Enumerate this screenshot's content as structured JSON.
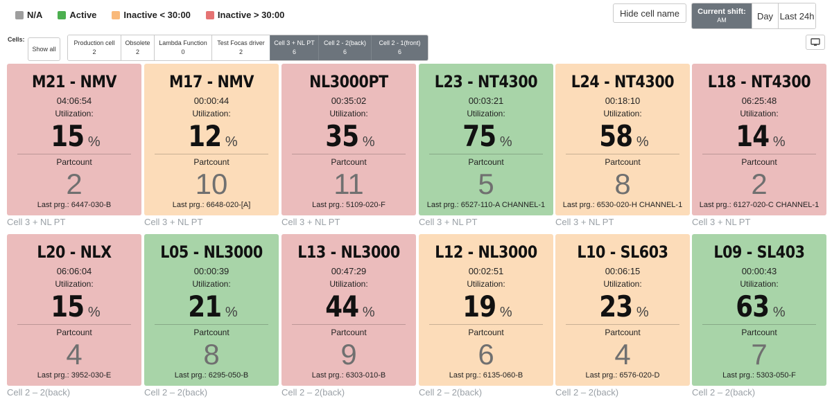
{
  "legend": [
    {
      "label": "N/A",
      "color": "#9e9e9e"
    },
    {
      "label": "Active",
      "color": "#4caf50"
    },
    {
      "label": "Inactive < 30:00",
      "color": "#f9b97a"
    },
    {
      "label": "Inactive > 30:00",
      "color": "#e57373"
    }
  ],
  "controls": {
    "hide_cell_name": "Hide cell name",
    "current_shift_label": "Current shift:",
    "current_shift_value": "AM",
    "day": "Day",
    "last_24h": "Last 24h"
  },
  "cells": {
    "label": "Cells:",
    "show_all": "Show all",
    "items": [
      {
        "name": "Production cell",
        "count": "2",
        "active": false
      },
      {
        "name": "Obsolete",
        "count": "2",
        "active": false
      },
      {
        "name": "Lambda Function",
        "count": "0",
        "active": false
      },
      {
        "name": "Test Focas driver",
        "count": "2",
        "active": false
      },
      {
        "name": "Cell 3 + NL PT",
        "count": "6",
        "active": true
      },
      {
        "name": "Cell 2 - 2(back)",
        "count": "6",
        "active": true
      },
      {
        "name": "Cell 2 - 1(front)",
        "count": "6",
        "active": true
      }
    ]
  },
  "machines": [
    {
      "name": "M21 - NMV",
      "time": "04:06:54",
      "util_label": "Utilization:",
      "util": "15",
      "part_label": "Partcount",
      "partcount": "2",
      "last_prg": "Last prg.: 6447-030-B",
      "cell": "Cell 3 + NL PT",
      "status": "red"
    },
    {
      "name": "M17 - NMV",
      "time": "00:00:44",
      "util_label": "Utilization:",
      "util": "12",
      "part_label": "Partcount",
      "partcount": "10",
      "last_prg": "Last prg.: 6648-020-[A]",
      "cell": "Cell 3 + NL PT",
      "status": "orange"
    },
    {
      "name": "NL3000PT",
      "time": "00:35:02",
      "util_label": "Utilization:",
      "util": "35",
      "part_label": "Partcount",
      "partcount": "11",
      "last_prg": "Last prg.: 5109-020-F",
      "cell": "Cell 3 + NL PT",
      "status": "red"
    },
    {
      "name": "L23 - NT4300",
      "time": "00:03:21",
      "util_label": "Utilization:",
      "util": "75",
      "part_label": "Partcount",
      "partcount": "5",
      "last_prg": "Last prg.: 6527-110-A CHANNEL-1",
      "cell": "Cell 3 + NL PT",
      "status": "green"
    },
    {
      "name": "L24 - NT4300",
      "time": "00:18:10",
      "util_label": "Utilization:",
      "util": "58",
      "part_label": "Partcount",
      "partcount": "8",
      "last_prg": "Last prg.: 6530-020-H CHANNEL-1",
      "cell": "Cell 3 + NL PT",
      "status": "orange"
    },
    {
      "name": "L18 - NT4300",
      "time": "06:25:48",
      "util_label": "Utilization:",
      "util": "14",
      "part_label": "Partcount",
      "partcount": "2",
      "last_prg": "Last prg.: 6127-020-C CHANNEL-1",
      "cell": "Cell 3 + NL PT",
      "status": "red"
    },
    {
      "name": "L20 - NLX",
      "time": "06:06:04",
      "util_label": "Utilization:",
      "util": "15",
      "part_label": "Partcount",
      "partcount": "4",
      "last_prg": "Last prg.: 3952-030-E",
      "cell": "Cell 2 – 2(back)",
      "status": "red"
    },
    {
      "name": "L05 - NL3000",
      "time": "00:00:39",
      "util_label": "Utilization:",
      "util": "21",
      "part_label": "Partcount",
      "partcount": "8",
      "last_prg": "Last prg.: 6295-050-B",
      "cell": "Cell 2 – 2(back)",
      "status": "green"
    },
    {
      "name": "L13 - NL3000",
      "time": "00:47:29",
      "util_label": "Utilization:",
      "util": "44",
      "part_label": "Partcount",
      "partcount": "9",
      "last_prg": "Last prg.: 6303-010-B",
      "cell": "Cell 2 – 2(back)",
      "status": "red"
    },
    {
      "name": "L12 - NL3000",
      "time": "00:02:51",
      "util_label": "Utilization:",
      "util": "19",
      "part_label": "Partcount",
      "partcount": "6",
      "last_prg": "Last prg.: 6135-060-B",
      "cell": "Cell 2 – 2(back)",
      "status": "orange"
    },
    {
      "name": "L10 - SL603",
      "time": "00:06:15",
      "util_label": "Utilization:",
      "util": "23",
      "part_label": "Partcount",
      "partcount": "4",
      "last_prg": "Last prg.: 6576-020-D",
      "cell": "Cell 2 – 2(back)",
      "status": "orange"
    },
    {
      "name": "L09 - SL403",
      "time": "00:00:43",
      "util_label": "Utilization:",
      "util": "63",
      "part_label": "Partcount",
      "partcount": "7",
      "last_prg": "Last prg.: 5303-050-F",
      "cell": "Cell 2 – 2(back)",
      "status": "green"
    }
  ]
}
